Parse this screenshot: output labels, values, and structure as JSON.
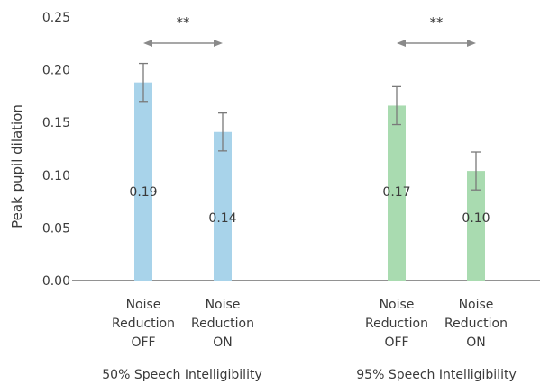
{
  "chart_data": {
    "type": "bar",
    "ylabel": "Peak pupil dilation",
    "ylim": [
      0,
      0.25
    ],
    "yticks": [
      "0.00",
      "0.05",
      "0.10",
      "0.15",
      "0.20",
      "0.25"
    ],
    "grid": false,
    "groups": [
      {
        "label": "50% Speech Intelligibility",
        "color": "#a8d3ea",
        "significance": "**",
        "bars": [
          {
            "label_lines": [
              "Noise",
              "Reduction",
              "OFF"
            ],
            "value": 0.188,
            "value_label": "0.19",
            "err_low": 0.17,
            "err_high": 0.206
          },
          {
            "label_lines": [
              "Noise",
              "Reduction",
              "ON"
            ],
            "value": 0.141,
            "value_label": "0.14",
            "err_low": 0.123,
            "err_high": 0.159
          }
        ]
      },
      {
        "label": "95% Speech Intelligibility",
        "color": "#a9dbb0",
        "significance": "**",
        "bars": [
          {
            "label_lines": [
              "Noise",
              "Reduction",
              "OFF"
            ],
            "value": 0.166,
            "value_label": "0.17",
            "err_low": 0.148,
            "err_high": 0.184
          },
          {
            "label_lines": [
              "Noise",
              "Reduction",
              "ON"
            ],
            "value": 0.104,
            "value_label": "0.10",
            "err_low": 0.086,
            "err_high": 0.122
          }
        ]
      }
    ]
  }
}
